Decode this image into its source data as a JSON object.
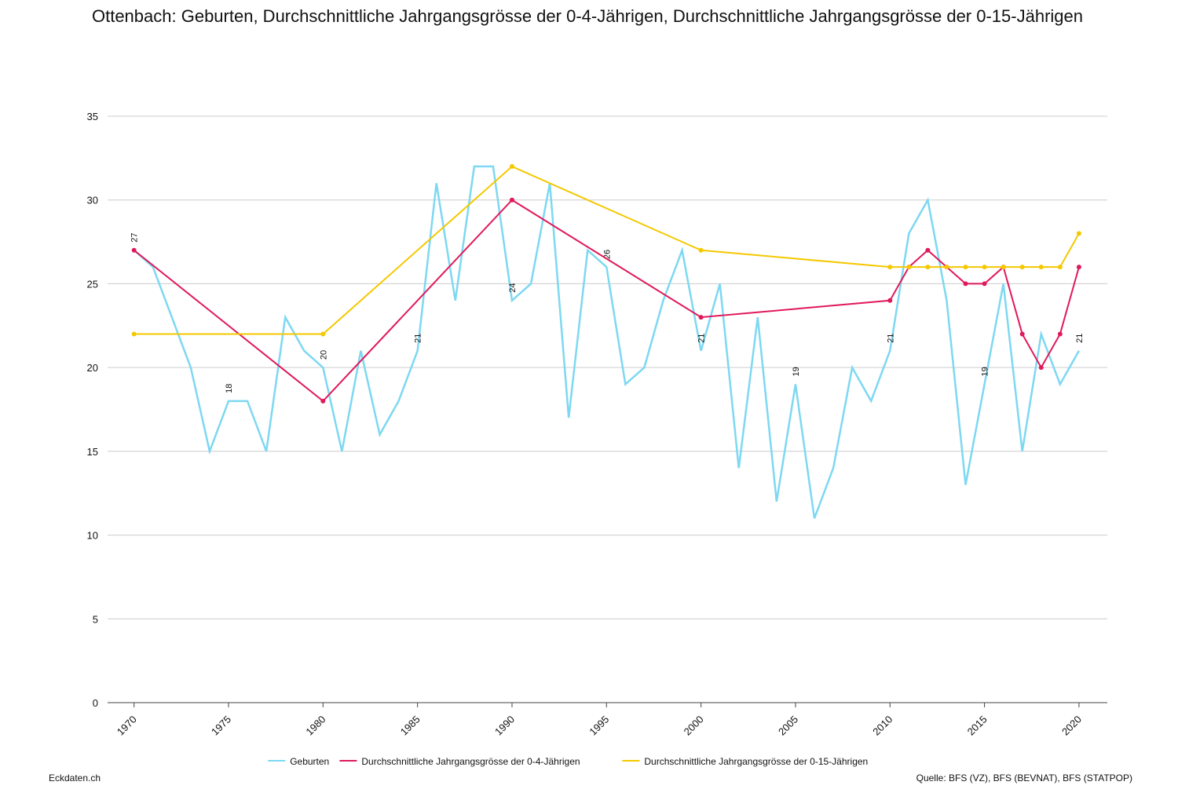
{
  "chart_data": {
    "type": "line",
    "title": "Ottenbach: Geburten, Durchschnittliche Jahrgangsgrösse der 0-4-Jährigen, Durchschnittliche Jahrgangsgrösse der 0-15-Jährigen",
    "series": [
      {
        "name": "Geburten",
        "color": "#7dd8f2",
        "marker": false,
        "data_label_step": 5,
        "x": [
          1970,
          1971,
          1972,
          1973,
          1974,
          1975,
          1976,
          1977,
          1978,
          1979,
          1980,
          1981,
          1982,
          1983,
          1984,
          1985,
          1986,
          1987,
          1988,
          1989,
          1990,
          1991,
          1992,
          1993,
          1994,
          1995,
          1996,
          1997,
          1998,
          1999,
          2000,
          2001,
          2002,
          2003,
          2004,
          2005,
          2006,
          2007,
          2008,
          2009,
          2010,
          2011,
          2012,
          2013,
          2014,
          2015,
          2016,
          2017,
          2018,
          2019,
          2020
        ],
        "values": [
          27,
          26,
          23,
          20,
          15,
          18,
          18,
          15,
          23,
          21,
          20,
          15,
          21,
          16,
          18,
          21,
          31,
          24,
          32,
          32,
          24,
          25,
          31,
          17,
          27,
          26,
          19,
          20,
          24,
          27,
          21,
          25,
          14,
          23,
          12,
          19,
          11,
          14,
          20,
          18,
          21,
          28,
          30,
          24,
          13,
          19,
          25,
          15,
          22,
          19,
          21
        ]
      },
      {
        "name": "Durchschnittliche Jahrgangsgrösse der 0-4-Jährigen",
        "color": "#e0195a",
        "marker": true,
        "x": [
          1970,
          1980,
          1990,
          2000,
          2010,
          2011,
          2012,
          2013,
          2014,
          2015,
          2016,
          2017,
          2018,
          2019,
          2020
        ],
        "values": [
          27,
          18,
          30,
          23,
          24,
          26,
          27,
          26,
          25,
          25,
          26,
          22,
          20,
          22,
          26
        ]
      },
      {
        "name": "Durchschnittliche Jahrgangsgrösse der 0-15-Jährigen",
        "color": "#f5c800",
        "marker": true,
        "x": [
          1970,
          1980,
          1990,
          2000,
          2010,
          2011,
          2012,
          2013,
          2014,
          2015,
          2016,
          2017,
          2018,
          2019,
          2020
        ],
        "values": [
          22,
          22,
          32,
          27,
          26,
          26,
          26,
          26,
          26,
          26,
          26,
          26,
          26,
          26,
          28
        ]
      }
    ],
    "xlim": [
      1968.6,
      2021.5
    ],
    "xticks": [
      1970,
      1975,
      1980,
      1985,
      1990,
      1995,
      2000,
      2005,
      2010,
      2015,
      2020
    ],
    "ylim": [
      0,
      35
    ],
    "yticks": [
      0,
      5,
      10,
      15,
      20,
      25,
      30,
      35
    ],
    "grid": true,
    "legend": "bottom",
    "footer_left": "Eckdaten.ch",
    "source": "Quelle: BFS (VZ), BFS (BEVNAT), BFS (STATPOP)"
  }
}
